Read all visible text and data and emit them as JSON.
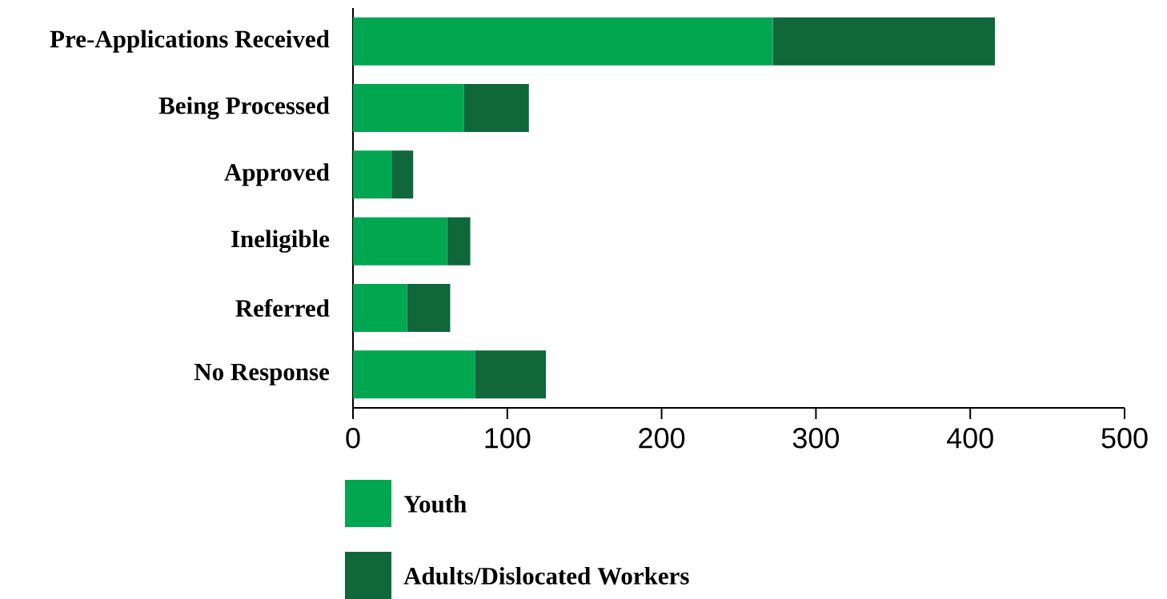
{
  "chart_data": {
    "type": "bar",
    "orientation": "horizontal",
    "stacked": true,
    "categories": [
      "Pre-Applications Received",
      "Being Processed",
      "Approved",
      "Ineligible",
      "Referred",
      "No Response"
    ],
    "series": [
      {
        "name": "Youth",
        "color": "#00a650",
        "values": [
          272,
          72,
          25,
          61,
          35,
          79
        ]
      },
      {
        "name": "Adults/Dislocated Workers",
        "color": "#0f673a",
        "values": [
          144,
          42,
          14,
          15,
          28,
          46
        ]
      }
    ],
    "xlim": [
      0,
      500
    ],
    "xticks": [
      0,
      100,
      200,
      300,
      400,
      500
    ],
    "grid": false,
    "legend": "bottom"
  }
}
